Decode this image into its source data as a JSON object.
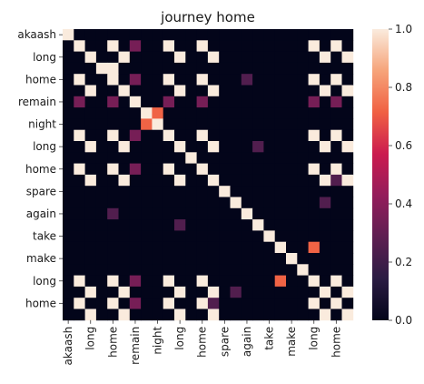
{
  "chart_data": {
    "type": "heatmap",
    "title": "journey home",
    "tokens": [
      "akaash",
      "",
      "long",
      "",
      "home",
      "",
      "remain",
      "",
      "night",
      "",
      "long",
      "",
      "home",
      "",
      "spare",
      "",
      "again",
      "",
      "take",
      "",
      "make",
      "",
      "long",
      "",
      "home",
      ""
    ],
    "tick_labels": [
      "akaash",
      "long",
      "home",
      "remain",
      "night",
      "long",
      "home",
      "spare",
      "again",
      "take",
      "make",
      "long",
      "home"
    ],
    "matrix": [
      [
        1,
        0,
        0,
        0,
        0,
        0,
        0,
        0,
        0,
        0,
        0,
        0,
        0,
        0,
        0,
        0,
        0,
        0,
        0,
        0,
        0,
        0,
        0,
        0,
        0,
        0
      ],
      [
        0,
        1,
        0,
        0,
        1,
        0,
        0.35,
        0,
        0,
        1,
        0,
        0,
        1,
        0,
        0,
        0,
        0,
        0,
        0,
        0,
        0,
        0,
        1,
        0,
        1,
        0
      ],
      [
        0,
        0,
        1,
        0,
        0,
        1,
        0,
        0,
        0,
        0,
        1,
        0,
        0,
        1,
        0,
        0,
        0,
        0,
        0,
        0,
        0,
        0,
        0,
        1,
        0,
        1
      ],
      [
        0,
        0,
        0,
        1,
        0,
        0,
        0,
        0,
        0,
        0,
        0,
        0,
        0,
        0,
        0,
        0,
        0,
        0,
        0,
        0,
        0,
        0,
        0,
        0,
        0,
        0
      ],
      [
        0,
        1,
        0,
        0,
        1,
        0,
        0.35,
        0,
        0,
        1,
        0,
        0,
        1,
        0,
        0,
        0,
        0,
        0,
        0,
        0,
        0,
        0,
        1,
        0,
        1,
        0
      ],
      [
        0,
        0,
        1,
        0,
        0,
        1,
        0,
        0,
        0,
        0,
        1,
        0,
        0,
        1,
        0,
        0,
        0,
        0,
        0,
        0,
        0,
        0,
        0,
        1,
        0,
        1
      ],
      [
        0,
        0.35,
        0,
        0,
        0.35,
        0,
        1,
        0,
        0,
        0.35,
        0,
        0,
        0.35,
        0,
        0,
        0,
        0,
        0,
        0,
        0,
        0,
        0,
        0.35,
        0,
        0.35,
        0
      ],
      [
        0,
        0,
        0,
        0,
        0,
        0,
        0,
        1,
        0,
        0,
        0,
        0,
        0,
        0,
        0,
        0,
        0,
        0,
        0,
        0,
        0,
        0,
        0,
        0,
        0,
        0
      ],
      [
        0,
        0,
        0,
        0,
        0,
        0,
        0,
        0,
        1,
        0,
        0,
        0,
        0,
        0,
        0,
        0,
        0,
        0,
        0,
        0,
        0,
        0,
        0,
        0,
        0,
        0
      ],
      [
        0,
        1,
        0,
        0,
        1,
        0,
        0.35,
        0,
        0,
        1,
        0,
        0,
        1,
        0,
        0,
        0,
        0,
        0,
        0,
        0,
        0,
        0,
        1,
        0,
        1,
        0
      ],
      [
        0,
        0,
        1,
        0,
        0,
        1,
        0,
        0,
        0,
        0,
        1,
        0,
        0,
        1,
        0,
        0,
        0,
        0,
        0,
        0,
        0,
        0,
        0,
        1,
        0,
        1
      ],
      [
        0,
        0,
        0,
        0,
        0,
        0,
        0,
        0,
        0,
        0,
        0,
        1,
        0,
        0,
        0,
        0,
        0,
        0,
        0,
        0,
        0,
        0,
        0,
        0,
        0,
        0
      ],
      [
        0,
        1,
        0,
        0,
        1,
        0,
        0.35,
        0,
        0,
        1,
        0,
        0,
        1,
        0,
        0,
        0,
        0,
        0,
        0,
        0,
        0,
        0,
        1,
        0,
        1,
        0
      ],
      [
        0,
        0,
        1,
        0,
        0,
        1,
        0,
        0,
        0,
        0,
        1,
        0,
        0,
        1,
        0,
        0,
        0,
        0,
        0,
        0,
        0,
        0,
        0,
        1,
        0,
        1
      ],
      [
        0,
        0,
        0,
        0,
        0,
        0,
        0,
        0,
        0,
        0,
        0,
        0,
        0,
        0,
        1,
        0,
        0,
        0,
        0,
        0,
        0,
        0,
        0,
        0,
        0,
        0
      ],
      [
        0,
        0,
        0,
        0,
        0,
        0,
        0,
        0,
        0,
        0,
        0,
        0,
        0,
        0,
        0,
        1,
        0,
        0,
        0,
        0,
        0,
        0,
        0,
        0,
        0,
        0
      ],
      [
        0,
        0,
        0,
        0,
        0,
        0,
        0,
        0,
        0,
        0,
        0,
        0,
        0,
        0,
        0,
        0,
        1,
        0,
        0,
        0,
        0,
        0,
        0,
        0,
        0,
        0
      ],
      [
        0,
        0,
        0,
        0,
        0,
        0,
        0,
        0,
        0,
        0,
        0,
        0,
        0,
        0,
        0,
        0,
        0,
        1,
        0,
        0,
        0,
        0,
        0,
        0,
        0,
        0
      ],
      [
        0,
        0,
        0,
        0,
        0,
        0,
        0,
        0,
        0,
        0,
        0,
        0,
        0,
        0,
        0,
        0,
        0,
        0,
        1,
        0,
        0,
        0,
        0,
        0,
        0,
        0
      ],
      [
        0,
        0,
        0,
        0,
        0,
        0,
        0,
        0,
        0,
        0,
        0,
        0,
        0,
        0,
        0,
        0,
        0,
        0,
        0,
        1,
        0,
        0,
        0,
        0,
        0,
        0
      ],
      [
        0,
        0,
        0,
        0,
        0,
        0,
        0,
        0,
        0,
        0,
        0,
        0,
        0,
        0,
        0,
        0,
        0,
        0,
        0,
        0,
        1,
        0,
        0,
        0,
        0,
        0
      ],
      [
        0,
        0,
        0,
        0,
        0,
        0,
        0,
        0,
        0,
        0,
        0,
        0,
        0,
        0,
        0,
        0,
        0,
        0,
        0,
        0,
        0,
        1,
        0,
        0,
        0,
        0
      ],
      [
        0,
        1,
        0,
        0,
        1,
        0,
        0.35,
        0,
        0,
        1,
        0,
        0,
        1,
        0,
        0,
        0,
        0,
        0,
        0,
        0,
        0,
        0,
        1,
        0,
        1,
        0
      ],
      [
        0,
        0,
        1,
        0,
        0,
        1,
        0,
        0,
        0,
        0,
        1,
        0,
        0,
        1,
        0,
        0,
        0,
        0,
        0,
        0,
        0,
        0,
        0,
        1,
        0,
        1
      ],
      [
        0,
        1,
        0,
        0,
        1,
        0,
        0.35,
        0,
        0,
        1,
        0,
        0,
        1,
        0,
        0,
        0,
        0,
        0,
        0,
        0,
        0,
        0,
        1,
        0,
        1,
        0
      ],
      [
        0,
        0,
        1,
        0,
        0,
        1,
        0,
        0,
        0,
        0,
        1,
        0,
        0,
        1,
        0,
        0,
        0,
        0,
        0,
        0,
        0,
        0,
        0,
        1,
        0,
        1
      ]
    ],
    "overrides": [
      {
        "row": 3,
        "col": 4,
        "value": 1
      },
      {
        "row": 8,
        "col": 7,
        "value": 0.72
      },
      {
        "row": 7,
        "col": 8,
        "value": 0.72
      },
      {
        "row": 4,
        "col": 16,
        "value": 0.25
      },
      {
        "row": 16,
        "col": 4,
        "value": 0.25
      },
      {
        "row": 10,
        "col": 17,
        "value": 0.25
      },
      {
        "row": 17,
        "col": 10,
        "value": 0.25
      },
      {
        "row": 19,
        "col": 22,
        "value": 0.72
      },
      {
        "row": 22,
        "col": 19,
        "value": 0.72
      },
      {
        "row": 15,
        "col": 23,
        "value": 0.25
      },
      {
        "row": 23,
        "col": 15,
        "value": 0.25
      },
      {
        "row": 13,
        "col": 24,
        "value": 0.25
      },
      {
        "row": 24,
        "col": 13,
        "value": 0.25
      }
    ],
    "colorbar": {
      "min": 0.0,
      "max": 1.0,
      "ticks": [
        "0.0",
        "0.2",
        "0.4",
        "0.6",
        "0.8",
        "1.0"
      ],
      "colormap": "rocket"
    },
    "colormap_stops": [
      "#03051a",
      "#2b1c43",
      "#5e1f52",
      "#941c5b",
      "#cb1b4f",
      "#f06043",
      "#f6a47a",
      "#faebdd"
    ],
    "grid": false,
    "legend": "colorbar-right"
  }
}
